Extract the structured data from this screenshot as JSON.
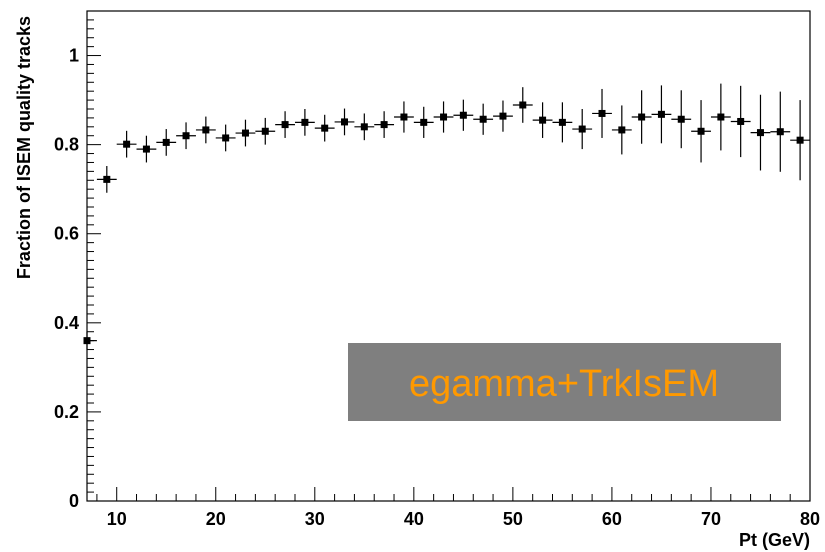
{
  "chart_data": {
    "type": "scatter",
    "title": "",
    "xlabel": "Pt (GeV)",
    "ylabel": "Fraction of ISEM quality tracks",
    "xlim": [
      7,
      80
    ],
    "ylim": [
      0,
      1.1
    ],
    "grid": false,
    "xticks": [
      {
        "value": 10,
        "label": "10"
      },
      {
        "value": 20,
        "label": "20"
      },
      {
        "value": 30,
        "label": "30"
      },
      {
        "value": 40,
        "label": "40"
      },
      {
        "value": 50,
        "label": "50"
      },
      {
        "value": 60,
        "label": "60"
      },
      {
        "value": 70,
        "label": "70"
      },
      {
        "value": 80,
        "label": "80"
      }
    ],
    "yticks": [
      {
        "value": 0,
        "label": "0"
      },
      {
        "value": 0.2,
        "label": "0.2"
      },
      {
        "value": 0.4,
        "label": "0.4"
      },
      {
        "value": 0.6,
        "label": "0.6"
      },
      {
        "value": 0.8,
        "label": "0.8"
      },
      {
        "value": 1,
        "label": "1"
      }
    ],
    "bin_width": 2,
    "points": [
      {
        "x": 7,
        "y": 0.36,
        "err": 0.02
      },
      {
        "x": 9,
        "y": 0.722,
        "err": 0.03
      },
      {
        "x": 11,
        "y": 0.801,
        "err": 0.03
      },
      {
        "x": 13,
        "y": 0.79,
        "err": 0.03
      },
      {
        "x": 15,
        "y": 0.805,
        "err": 0.03
      },
      {
        "x": 17,
        "y": 0.82,
        "err": 0.03
      },
      {
        "x": 19,
        "y": 0.833,
        "err": 0.03
      },
      {
        "x": 21,
        "y": 0.815,
        "err": 0.03
      },
      {
        "x": 23,
        "y": 0.826,
        "err": 0.03
      },
      {
        "x": 25,
        "y": 0.83,
        "err": 0.03
      },
      {
        "x": 27,
        "y": 0.845,
        "err": 0.03
      },
      {
        "x": 29,
        "y": 0.85,
        "err": 0.03
      },
      {
        "x": 31,
        "y": 0.837,
        "err": 0.03
      },
      {
        "x": 33,
        "y": 0.851,
        "err": 0.03
      },
      {
        "x": 35,
        "y": 0.84,
        "err": 0.03
      },
      {
        "x": 37,
        "y": 0.845,
        "err": 0.03
      },
      {
        "x": 39,
        "y": 0.862,
        "err": 0.035
      },
      {
        "x": 41,
        "y": 0.85,
        "err": 0.035
      },
      {
        "x": 43,
        "y": 0.862,
        "err": 0.035
      },
      {
        "x": 45,
        "y": 0.866,
        "err": 0.035
      },
      {
        "x": 47,
        "y": 0.857,
        "err": 0.035
      },
      {
        "x": 49,
        "y": 0.864,
        "err": 0.035
      },
      {
        "x": 51,
        "y": 0.889,
        "err": 0.04
      },
      {
        "x": 53,
        "y": 0.855,
        "err": 0.04
      },
      {
        "x": 55,
        "y": 0.85,
        "err": 0.045
      },
      {
        "x": 57,
        "y": 0.835,
        "err": 0.045
      },
      {
        "x": 59,
        "y": 0.87,
        "err": 0.055
      },
      {
        "x": 61,
        "y": 0.833,
        "err": 0.055
      },
      {
        "x": 63,
        "y": 0.862,
        "err": 0.06
      },
      {
        "x": 65,
        "y": 0.868,
        "err": 0.065
      },
      {
        "x": 67,
        "y": 0.857,
        "err": 0.065
      },
      {
        "x": 69,
        "y": 0.83,
        "err": 0.07
      },
      {
        "x": 71,
        "y": 0.862,
        "err": 0.075
      },
      {
        "x": 73,
        "y": 0.852,
        "err": 0.08
      },
      {
        "x": 75,
        "y": 0.827,
        "err": 0.085
      },
      {
        "x": 77,
        "y": 0.829,
        "err": 0.09
      },
      {
        "x": 79,
        "y": 0.81,
        "err": 0.09
      }
    ],
    "annotation": {
      "text": "egamma+TrkIsEM",
      "box_color": "#7f7f7f",
      "text_color": "#ff9900"
    },
    "marker_color": "#000000"
  }
}
